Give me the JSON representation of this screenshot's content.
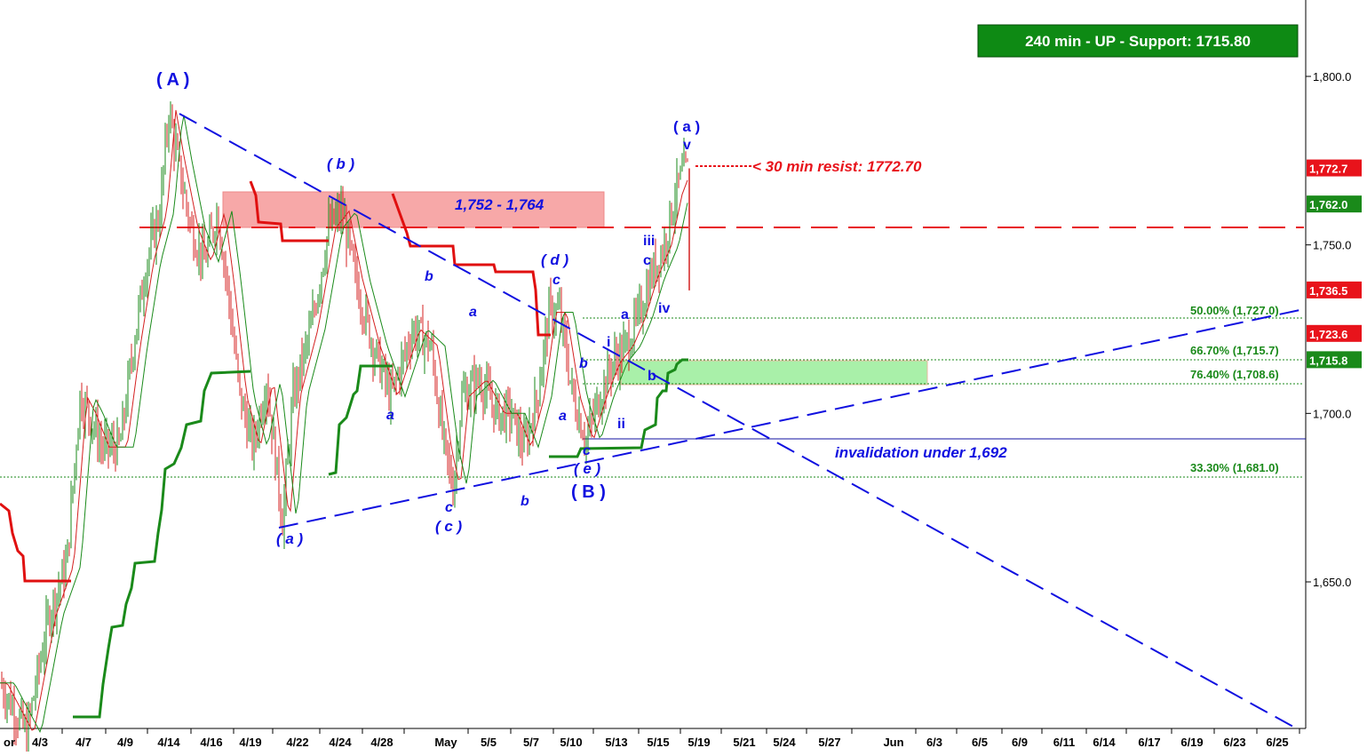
{
  "header": {
    "title": "240 min  - UP - Support: 1715.80"
  },
  "chart_data": {
    "type": "line",
    "series_kind": "price bars (OHLC) with moving averages",
    "y_axis": {
      "ticks": [
        {
          "value": 1800,
          "label": "1,800.0"
        },
        {
          "value": 1750,
          "label": "1,750.0"
        },
        {
          "value": 1700,
          "label": "1,700.0"
        },
        {
          "value": 1650,
          "label": "1,650.0"
        }
      ]
    },
    "x_axis": {
      "ticks": [
        "or",
        "4/3",
        "4/7",
        "4/9",
        "4/14",
        "4/16",
        "4/19",
        "4/22",
        "4/24",
        "4/28",
        "May",
        "5/5",
        "5/7",
        "5/10",
        "5/13",
        "5/15",
        "5/19",
        "5/21",
        "5/24",
        "5/27",
        "Jun",
        "6/3",
        "6/5",
        "6/9",
        "6/11",
        "6/14",
        "6/17",
        "6/19",
        "6/23",
        "6/25"
      ]
    },
    "price_tags": [
      {
        "value": 1772.7,
        "label": "1,772.7",
        "color": "#e8131b"
      },
      {
        "value": 1762.0,
        "label": "1,762.0",
        "color": "#1a8a1a"
      },
      {
        "value": 1736.5,
        "label": "1,736.5",
        "color": "#e8131b"
      },
      {
        "value": 1723.6,
        "label": "1,723.6",
        "color": "#e8131b"
      },
      {
        "value": 1715.8,
        "label": "1,715.8",
        "color": "#1a8a1a"
      }
    ],
    "resistance_zone": {
      "low": 1752,
      "high": 1764,
      "label": "1,752 - 1,764"
    },
    "support_zone": {
      "low": 1708.6,
      "high": 1715.7
    },
    "fib_levels": [
      {
        "value": 1727.0,
        "label": "50.00% (1,727.0)"
      },
      {
        "value": 1715.7,
        "label": "66.70% (1,715.7)"
      },
      {
        "value": 1708.6,
        "label": "76.40% (1,708.6)"
      },
      {
        "value": 1681.0,
        "label": "33.30% (1,681.0)"
      }
    ],
    "invalidation": {
      "value": 1692,
      "label": "invalidation under 1,692"
    },
    "resist_note": "< 30 min resist: 1772.70",
    "wave_labels": [
      "( A )",
      "( B )",
      "( a )",
      "( b )",
      "( c )",
      "( d )",
      "( e )",
      "( a )",
      "v",
      "iii",
      "iv",
      "ii",
      "i",
      "a",
      "b",
      "c"
    ],
    "colors": {
      "bull": "#1a8a1a",
      "bear": "#d42020",
      "wave": "#1010e0",
      "resist": "#e8131b"
    }
  }
}
